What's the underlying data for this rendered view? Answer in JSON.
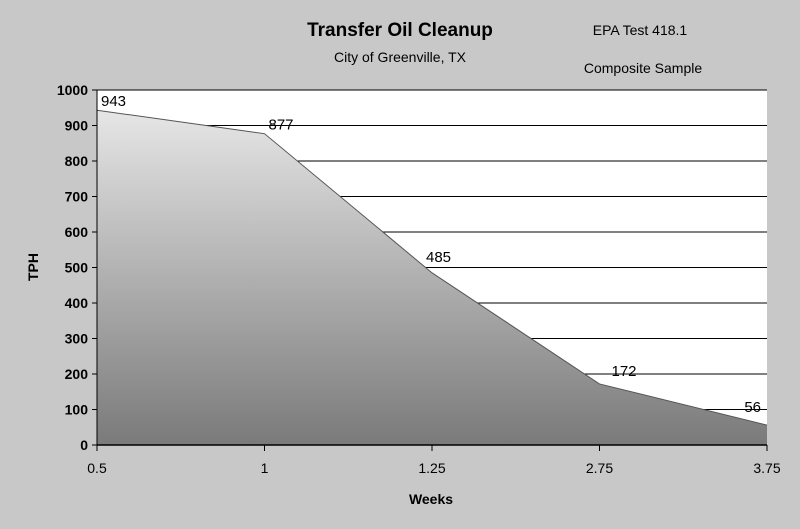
{
  "chart_data": {
    "type": "area",
    "title": "Transfer Oil Cleanup",
    "subtitle": "City of Greenville, TX",
    "notes": [
      "EPA Test 418.1",
      "Composite Sample"
    ],
    "xlabel": "Weeks",
    "ylabel": "TPH",
    "categories": [
      "0.5",
      "1",
      "1.25",
      "2.75",
      "3.75"
    ],
    "values": [
      943,
      877,
      485,
      172,
      56
    ],
    "data_labels": [
      "943",
      "877",
      "485",
      "172",
      "56"
    ],
    "ylim": [
      0,
      1000
    ],
    "yticks": [
      "0",
      "100",
      "200",
      "300",
      "400",
      "500",
      "600",
      "700",
      "800",
      "900",
      "1000"
    ],
    "grid": "horizontal",
    "legend": "none"
  }
}
